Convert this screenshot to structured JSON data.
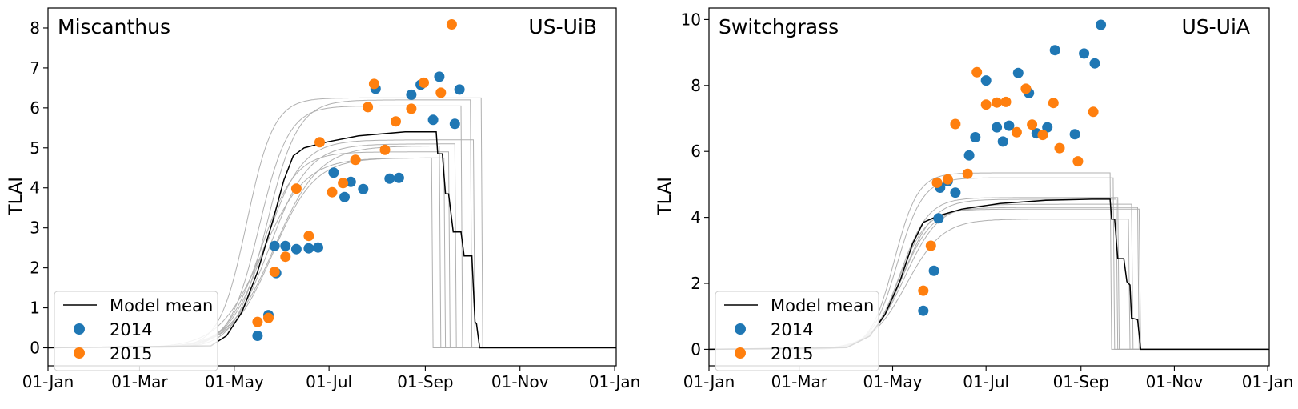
{
  "colors": {
    "mean": "#000000",
    "ensemble": "#b0b0b0",
    "y2014": "#1f77b4",
    "y2015": "#ff7f0e"
  },
  "chart_data": [
    {
      "type": "line",
      "title": "Miscanthus",
      "site": "US-UiB",
      "xlabel": "",
      "ylabel": "TLAI",
      "xlim": [
        0,
        366
      ],
      "ylim": [
        -0.45,
        8.5
      ],
      "xticks": [
        {
          "day": 0,
          "label": "01-Jan"
        },
        {
          "day": 59,
          "label": "01-Mar"
        },
        {
          "day": 120,
          "label": "01-May"
        },
        {
          "day": 181,
          "label": "01-Jul"
        },
        {
          "day": 243,
          "label": "01-Sep"
        },
        {
          "day": 304,
          "label": "01-Nov"
        },
        {
          "day": 365,
          "label": "01-Jan"
        }
      ],
      "yticks": [
        0,
        1,
        2,
        3,
        4,
        5,
        6,
        7,
        8
      ],
      "legend": {
        "position": "lower-left",
        "entries": [
          "Model mean",
          "2014",
          "2015"
        ]
      },
      "model_mean": {
        "name": "Model mean",
        "points": [
          [
            0,
            0
          ],
          [
            105,
            0.05
          ],
          [
            115,
            0.3
          ],
          [
            125,
            0.9
          ],
          [
            135,
            1.9
          ],
          [
            145,
            3.2
          ],
          [
            152,
            4.2
          ],
          [
            158,
            4.8
          ],
          [
            165,
            5.0
          ],
          [
            180,
            5.15
          ],
          [
            200,
            5.3
          ],
          [
            230,
            5.4
          ],
          [
            250,
            5.4
          ],
          [
            251,
            4.85
          ],
          [
            254,
            4.85
          ],
          [
            256,
            3.85
          ],
          [
            258,
            3.85
          ],
          [
            261,
            2.9
          ],
          [
            266,
            2.9
          ],
          [
            268,
            2.3
          ],
          [
            273,
            2.3
          ],
          [
            275,
            0.65
          ],
          [
            276,
            0.6
          ],
          [
            278,
            0
          ],
          [
            366,
            0
          ]
        ]
      },
      "ensemble": [
        {
          "plateau": 6.25,
          "k": 0.115,
          "mid": 128,
          "end": 279
        },
        {
          "plateau": 6.05,
          "k": 0.105,
          "mid": 136,
          "end": 266
        },
        {
          "plateau": 6.2,
          "k": 0.1,
          "mid": 141,
          "end": 272
        },
        {
          "plateau": 5.2,
          "k": 0.085,
          "mid": 140,
          "end": 274
        },
        {
          "plateau": 5.1,
          "k": 0.08,
          "mid": 143,
          "end": 262
        },
        {
          "plateau": 4.9,
          "k": 0.09,
          "mid": 137,
          "end": 258
        },
        {
          "plateau": 4.75,
          "k": 0.075,
          "mid": 145,
          "end": 255
        },
        {
          "plateau": 5.05,
          "k": 0.07,
          "mid": 146,
          "end": 252
        },
        {
          "plateau": 4.75,
          "k": 0.072,
          "mid": 138,
          "end": 247
        }
      ],
      "obs_2014": [
        [
          135,
          0.3
        ],
        [
          142,
          0.82
        ],
        [
          146,
          2.55
        ],
        [
          147,
          1.87
        ],
        [
          153,
          2.55
        ],
        [
          160,
          2.47
        ],
        [
          168,
          2.49
        ],
        [
          174,
          2.51
        ],
        [
          184,
          4.38
        ],
        [
          191,
          3.77
        ],
        [
          195,
          4.15
        ],
        [
          203,
          3.97
        ],
        [
          211,
          6.48
        ],
        [
          220,
          4.23
        ],
        [
          226,
          4.25
        ],
        [
          234,
          6.33
        ],
        [
          240,
          6.58
        ],
        [
          248,
          5.7
        ],
        [
          252,
          6.78
        ],
        [
          262,
          5.6
        ],
        [
          265,
          6.46
        ]
      ],
      "obs_2015": [
        [
          135,
          0.65
        ],
        [
          142,
          0.75
        ],
        [
          146,
          1.9
        ],
        [
          153,
          2.28
        ],
        [
          160,
          3.98
        ],
        [
          168,
          2.8
        ],
        [
          175,
          5.14
        ],
        [
          183,
          3.89
        ],
        [
          190,
          4.12
        ],
        [
          198,
          4.7
        ],
        [
          206,
          6.02
        ],
        [
          210,
          6.6
        ],
        [
          217,
          4.95
        ],
        [
          224,
          5.66
        ],
        [
          234,
          5.98
        ],
        [
          242,
          6.63
        ],
        [
          253,
          6.38
        ],
        [
          260,
          8.09
        ]
      ]
    },
    {
      "type": "line",
      "title": "Switchgrass",
      "site": "US-UiA",
      "xlabel": "",
      "ylabel": "TLAI",
      "xlim": [
        0,
        366
      ],
      "ylim": [
        -0.5,
        10.35
      ],
      "xticks": [
        {
          "day": 0,
          "label": "01-Jan"
        },
        {
          "day": 59,
          "label": "01-Mar"
        },
        {
          "day": 120,
          "label": "01-May"
        },
        {
          "day": 181,
          "label": "01-Jul"
        },
        {
          "day": 243,
          "label": "01-Sep"
        },
        {
          "day": 304,
          "label": "01-Nov"
        },
        {
          "day": 365,
          "label": "01-Jan"
        }
      ],
      "yticks": [
        0,
        2,
        4,
        6,
        8,
        10
      ],
      "legend": {
        "position": "lower-left",
        "entries": [
          "Model mean",
          "2014",
          "2015"
        ]
      },
      "model_mean": {
        "name": "Model mean",
        "points": [
          [
            0,
            0
          ],
          [
            90,
            0.05
          ],
          [
            105,
            0.4
          ],
          [
            115,
            1.05
          ],
          [
            125,
            2.1
          ],
          [
            133,
            3.2
          ],
          [
            140,
            3.85
          ],
          [
            150,
            4.05
          ],
          [
            165,
            4.25
          ],
          [
            190,
            4.42
          ],
          [
            220,
            4.52
          ],
          [
            250,
            4.55
          ],
          [
            262,
            4.55
          ],
          [
            263,
            3.95
          ],
          [
            265,
            3.95
          ],
          [
            267,
            2.75
          ],
          [
            271,
            2.75
          ],
          [
            273,
            2.05
          ],
          [
            275,
            1.95
          ],
          [
            276,
            0.95
          ],
          [
            280,
            0.9
          ],
          [
            282,
            0
          ],
          [
            366,
            0
          ]
        ]
      },
      "ensemble": [
        {
          "plateau": 5.35,
          "k": 0.13,
          "mid": 121,
          "end": 262
        },
        {
          "plateau": 5.2,
          "k": 0.12,
          "mid": 123,
          "end": 264
        },
        {
          "plateau": 4.6,
          "k": 0.11,
          "mid": 125,
          "end": 267
        },
        {
          "plateau": 4.55,
          "k": 0.1,
          "mid": 127,
          "end": 266
        },
        {
          "plateau": 4.4,
          "k": 0.09,
          "mid": 128,
          "end": 276
        },
        {
          "plateau": 4.3,
          "k": 0.1,
          "mid": 126,
          "end": 280
        },
        {
          "plateau": 3.95,
          "k": 0.085,
          "mid": 129,
          "end": 274
        },
        {
          "plateau": 4.25,
          "k": 0.11,
          "mid": 124,
          "end": 281
        }
      ],
      "obs_2014": [
        [
          140,
          1.17
        ],
        [
          147,
          2.38
        ],
        [
          150,
          3.97
        ],
        [
          151,
          4.9
        ],
        [
          156,
          5.1
        ],
        [
          161,
          4.75
        ],
        [
          170,
          5.88
        ],
        [
          174,
          6.43
        ],
        [
          181,
          8.15
        ],
        [
          188,
          6.73
        ],
        [
          192,
          6.3
        ],
        [
          196,
          6.78
        ],
        [
          202,
          8.38
        ],
        [
          209,
          7.77
        ],
        [
          214,
          6.55
        ],
        [
          221,
          6.73
        ],
        [
          226,
          9.07
        ],
        [
          239,
          6.52
        ],
        [
          245,
          8.97
        ],
        [
          252,
          8.67
        ],
        [
          256,
          9.84
        ]
      ],
      "obs_2015": [
        [
          140,
          1.78
        ],
        [
          145,
          3.14
        ],
        [
          149,
          5.05
        ],
        [
          156,
          5.15
        ],
        [
          161,
          6.83
        ],
        [
          169,
          5.32
        ],
        [
          175,
          8.4
        ],
        [
          181,
          7.42
        ],
        [
          188,
          7.48
        ],
        [
          194,
          7.5
        ],
        [
          201,
          6.58
        ],
        [
          207,
          7.9
        ],
        [
          211,
          6.81
        ],
        [
          218,
          6.5
        ],
        [
          225,
          7.47
        ],
        [
          229,
          6.1
        ],
        [
          241,
          5.7
        ],
        [
          251,
          7.2
        ]
      ]
    }
  ]
}
